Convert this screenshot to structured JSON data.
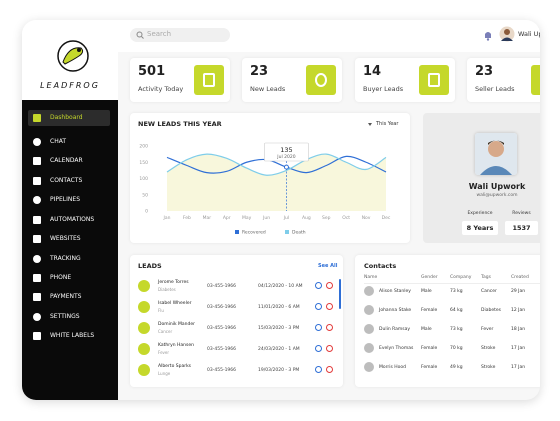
{
  "brand": "LEADFROG",
  "search_placeholder": "Search",
  "user_name": "Wali Up",
  "nav": [
    "Dashboard",
    "CHAT",
    "CALENDAR",
    "CONTACTS",
    "PIPELINES",
    "AUTOMATIONS",
    "WEBSITES",
    "TRACKING",
    "PHONE",
    "PAYMENTS",
    "SETTINGS",
    "WHITE LABELS"
  ],
  "stats": [
    {
      "value": 501,
      "label": "Activity Today"
    },
    {
      "value": 23,
      "label": "New Leads"
    },
    {
      "value": 14,
      "label": "Buyer Leads"
    },
    {
      "value": 23,
      "label": "Seller Leads"
    }
  ],
  "chart_data": {
    "type": "line",
    "title": "NEW LEADS THIS YEAR",
    "period": "This Year",
    "categories": [
      "Jan",
      "Feb",
      "Mar",
      "Apr",
      "May",
      "Jun",
      "Jul",
      "Aug",
      "Sep",
      "Oct",
      "Nov",
      "Dec"
    ],
    "ylim": [
      0,
      200
    ],
    "yticks": [
      0,
      50,
      100,
      150,
      200
    ],
    "series": [
      {
        "name": "Recovered",
        "color": "#2f6fd6",
        "values": [
          165,
          140,
          118,
          122,
          150,
          158,
          135,
          118,
          140,
          168,
          150,
          120
        ]
      },
      {
        "name": "Death",
        "color": "#7fcdea",
        "values": [
          120,
          158,
          175,
          162,
          132,
          110,
          125,
          158,
          175,
          150,
          128,
          165
        ]
      }
    ],
    "tooltip": {
      "value": 135,
      "label": "Jul 2020"
    }
  },
  "profile": {
    "name": "Wali Upwork",
    "email": "wali@upwork.com",
    "experience_label": "Experience",
    "experience": "8 Years",
    "reviews_label": "Reviews",
    "reviews": "1537"
  },
  "leads": {
    "title": "LEADS",
    "see_all": "See All",
    "rows": [
      {
        "name": "Jerome Torres",
        "tag": "Diabetes",
        "phone": "03-455-1966",
        "date": "04/12/2020 - 10 AM"
      },
      {
        "name": "Isabel Wheeler",
        "tag": "Flu",
        "phone": "03-456-1966",
        "date": "11/01/2020 - 6 AM"
      },
      {
        "name": "Dominik Mander",
        "tag": "Cancer",
        "phone": "03-455-1966",
        "date": "15/03/2020 - 3 PM"
      },
      {
        "name": "Kathryn Hansen",
        "tag": "Fever",
        "phone": "03-455-1966",
        "date": "24/03/2020 - 1 AM"
      },
      {
        "name": "Alberto Sparks",
        "tag": "Lunge",
        "phone": "03-455-1966",
        "date": "19/03/2020 - 3 PM"
      }
    ]
  },
  "contacts": {
    "title": "Contacts",
    "columns": [
      "Name",
      "Gender",
      "Company",
      "Tags",
      "Created"
    ],
    "rows": [
      [
        "Alison Stanley",
        "Male",
        "73 kg",
        "Cancer",
        "29 Jan"
      ],
      [
        "Johanna Stake",
        "Female",
        "64 kg",
        "Diabetes",
        "12 Jan"
      ],
      [
        "Dulin Ramsay",
        "Male",
        "73 kg",
        "Fever",
        "18 Jan"
      ],
      [
        "Evelyn Thomas",
        "Female",
        "70 kg",
        "Stroke",
        "17 Jan"
      ],
      [
        "Morris Hood",
        "Female",
        "49 kg",
        "Stroke",
        "17 Jan"
      ]
    ]
  }
}
